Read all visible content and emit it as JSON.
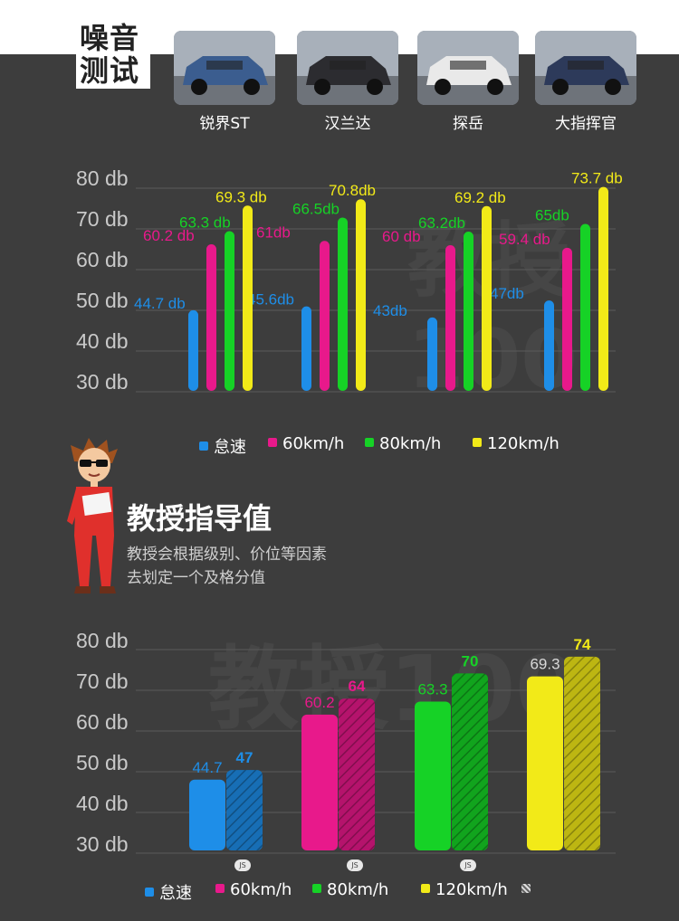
{
  "header": {
    "title_line1": "噪音",
    "title_line2": "测试"
  },
  "cars": [
    {
      "name": "锐界ST",
      "color": "#3b5d8f"
    },
    {
      "name": "汉兰达",
      "color": "#2c2c30"
    },
    {
      "name": "探岳",
      "color": "#e9e9e9"
    },
    {
      "name": "大指挥官",
      "color": "#2d3a5a"
    }
  ],
  "chart_data": [
    {
      "type": "bar",
      "categories": [
        "锐界ST",
        "汉兰达",
        "探岳",
        "大指挥官"
      ],
      "ylim": [
        30,
        80
      ],
      "yticks": [
        "80 db",
        "70 db",
        "60 db",
        "50 db",
        "40 db",
        "30 db"
      ],
      "series": [
        {
          "name": "怠速",
          "color": "#1e8ee8",
          "values": [
            44.7,
            45.6,
            43,
            47
          ],
          "labels": [
            "44.7 db",
            "45.6db",
            "43db",
            "47db"
          ]
        },
        {
          "name": "60km/h",
          "color": "#e8198b",
          "values": [
            60.2,
            61,
            60,
            59.4
          ],
          "labels": [
            "60.2 db",
            "61db",
            "60 db",
            "59.4 db"
          ]
        },
        {
          "name": "80km/h",
          "color": "#16d226",
          "values": [
            63.3,
            66.5,
            63.2,
            65
          ],
          "labels": [
            "63.3 db",
            "66.5db",
            "63.2db",
            "65db"
          ]
        },
        {
          "name": "120km/h",
          "color": "#f2ea18",
          "values": [
            69.3,
            70.8,
            69.2,
            73.7
          ],
          "labels": [
            "69.3 db",
            "70.8db",
            "69.2 db",
            "73.7 db"
          ]
        }
      ],
      "legend": [
        "怠速",
        "60km/h",
        "80km/h",
        "120km/h"
      ]
    },
    {
      "type": "bar",
      "categories": [
        "怠速",
        "60km/h",
        "80km/h",
        "120km/h"
      ],
      "ylim": [
        30,
        80
      ],
      "yticks": [
        "80 db",
        "70 db",
        "60 db",
        "50 db",
        "40 db",
        "30 db"
      ],
      "series": [
        {
          "name": "",
          "style": "solid",
          "values": [
            44.7,
            60.2,
            63.3,
            69.3
          ],
          "labels": [
            "44.7",
            "60.2",
            "63.3",
            "69.3"
          ]
        },
        {
          "name": "",
          "style": "hatched",
          "values": [
            47,
            64,
            70,
            74
          ],
          "labels": [
            "47",
            "64",
            "70",
            "74"
          ]
        }
      ],
      "colors": [
        "#1e8ee8",
        "#e8198b",
        "#16d226",
        "#f2ea18"
      ],
      "legend": [
        "怠速",
        "60km/h",
        "80km/h",
        "120km/h"
      ]
    }
  ],
  "guide": {
    "title": "教授指导值",
    "desc_line1": "教授会根据级别、价位等因素",
    "desc_line2": "去划定一个及格分值"
  },
  "badge": "JS",
  "watermark": "教授100"
}
